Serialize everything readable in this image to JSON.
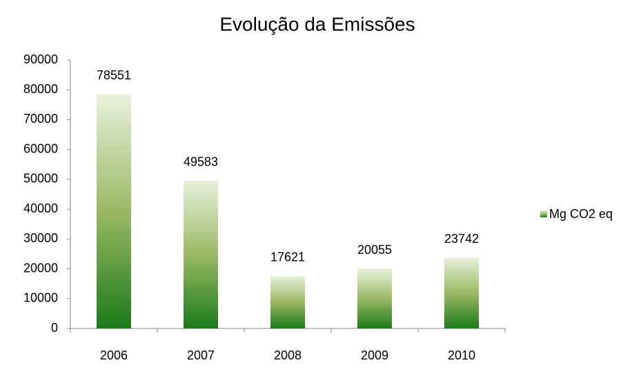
{
  "chart_data": {
    "type": "bar",
    "title": "Evolução da Emissões",
    "categories": [
      "2006",
      "2007",
      "2008",
      "2009",
      "2010"
    ],
    "series": [
      {
        "name": "Mg CO2 eq",
        "color": "#1b7a1b",
        "values": [
          78551,
          49583,
          17621,
          20055,
          23742
        ]
      }
    ],
    "ylim": [
      0,
      90000
    ],
    "yticks": [
      0,
      10000,
      20000,
      30000,
      40000,
      50000,
      60000,
      70000,
      80000,
      90000
    ],
    "grid": false,
    "legend": "right"
  }
}
